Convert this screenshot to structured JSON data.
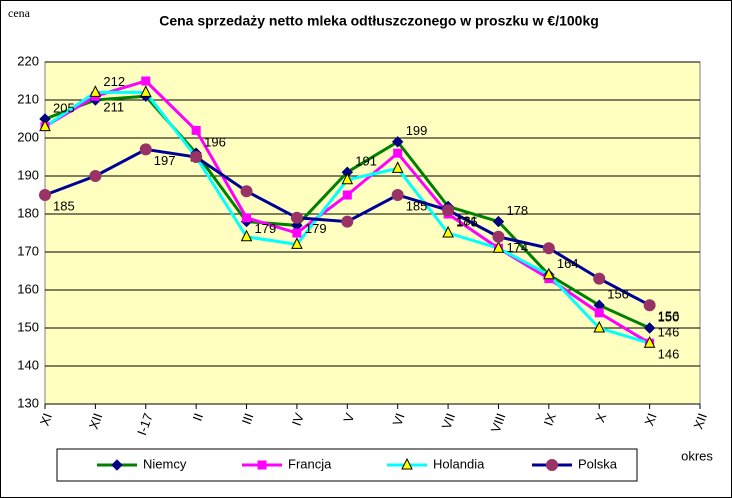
{
  "chart_data": {
    "type": "line",
    "title": "Cena sprzedaży netto mleka odtłuszczonego w proszku w €/100kg",
    "y_label": "cena",
    "x_label": "okres",
    "categories": [
      "XI",
      "XII",
      "I-17",
      "II",
      "III",
      "IV",
      "V",
      "VI",
      "VII",
      "VIII",
      "IX",
      "X",
      "XI",
      "XII"
    ],
    "series": [
      {
        "name": "Niemcy",
        "color": "#008000",
        "marker": "diamond",
        "marker_color": "#000080",
        "values": [
          205,
          210,
          211,
          196,
          178,
          177,
          191,
          199,
          182,
          178,
          164,
          156,
          150,
          null
        ],
        "value_labels": [
          "205",
          null,
          null,
          "196",
          null,
          null,
          "191",
          "199",
          null,
          "178",
          null,
          "156",
          "150",
          null
        ]
      },
      {
        "name": "Francja",
        "color": "#ff00ff",
        "marker": "square",
        "marker_color": "#ff00ff",
        "values": [
          203,
          211,
          215,
          202,
          179,
          175,
          185,
          196,
          180,
          171,
          163,
          154,
          146,
          null
        ],
        "value_labels": [
          null,
          "211",
          null,
          null,
          "179",
          null,
          null,
          null,
          null,
          null,
          null,
          null,
          "146",
          null
        ]
      },
      {
        "name": "Holandia",
        "color": "#00ffff",
        "marker": "triangle",
        "marker_color": "#ffff00",
        "values": [
          203,
          212,
          212,
          195,
          174,
          172,
          189,
          192,
          175,
          171,
          164,
          150,
          146,
          null
        ],
        "value_labels": [
          null,
          "212",
          null,
          null,
          null,
          null,
          null,
          null,
          "175",
          null,
          "164",
          null,
          "146",
          null
        ]
      },
      {
        "name": "Polska",
        "color": "#000099",
        "marker": "circle",
        "marker_color": "#993366",
        "values": [
          185,
          190,
          197,
          195,
          186,
          179,
          178,
          185,
          181,
          174,
          171,
          163,
          156,
          null
        ],
        "value_labels": [
          "185",
          null,
          "197",
          null,
          null,
          "179",
          null,
          "185",
          "181",
          "174",
          null,
          null,
          "156",
          null
        ]
      }
    ],
    "ylim": [
      130,
      220
    ],
    "yticks": [
      130,
      140,
      150,
      160,
      170,
      180,
      190,
      200,
      210,
      220
    ],
    "grid": true,
    "legend": "bottom"
  }
}
